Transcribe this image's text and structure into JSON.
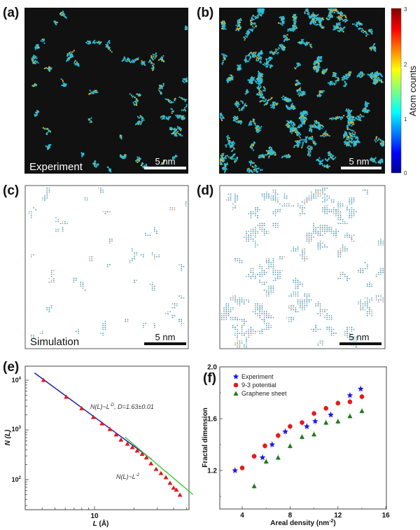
{
  "panels": {
    "a": {
      "label": "(a)",
      "caption": "Experiment",
      "scale_bar": "5 nm"
    },
    "b": {
      "label": "(b)",
      "scale_bar": "5 nm"
    },
    "c": {
      "label": "(c)",
      "caption": "Simulation",
      "scale_bar": "5 nm"
    },
    "d": {
      "label": "(d)",
      "scale_bar": "5 nm"
    },
    "e": {
      "label": "(e)"
    },
    "f": {
      "label": "(f)"
    }
  },
  "colorbar": {
    "title": "Atom counts",
    "ticks": [
      "0",
      "1",
      "2",
      "3"
    ],
    "range": [
      0,
      3
    ]
  },
  "colors": {
    "map_bg": "#111111",
    "atom_cyan": "#2bbcd6",
    "atom_yellow": "#e8b21a",
    "sim_blue": "#4a9fc0",
    "sim_orange": "#e0a070",
    "experiment": "#1a1ae6",
    "potential": "#e61a1a",
    "graphene": "#1a7a1a",
    "fit_blue": "#1a1aa8",
    "fit_green": "#3cc83c",
    "triangle_red": "#e01a1a"
  },
  "chart_data": [
    {
      "type": "scatter",
      "panel": "e",
      "xlabel": "L (Å)",
      "xlabel_parts": {
        "var": "L",
        "unit": " (Å)"
      },
      "ylabel": "N (L)",
      "xscale": "log",
      "yscale": "log",
      "xlim": [
        3.0,
        52
      ],
      "ylim": [
        25,
        19000
      ],
      "xticks": [
        {
          "value": 10,
          "label": "10"
        }
      ],
      "yticks": [
        {
          "value": 100,
          "base": "10",
          "exp": "2"
        },
        {
          "value": 1000,
          "base": "10",
          "exp": "3"
        },
        {
          "value": 10000,
          "base": "10",
          "exp": "4"
        }
      ],
      "series": [
        {
          "name": "N(L)",
          "marker": "triangle",
          "x": [
            4.1,
            6.1,
            8.0,
            9.8,
            11.4,
            13.1,
            14.6,
            15.9,
            17.8,
            19.4,
            21.1,
            23.0,
            24.8,
            26.9,
            29.4,
            32.0,
            34.9,
            37.5,
            39.9,
            41.9,
            44.6
          ],
          "y": [
            10000,
            4600,
            2700,
            1800,
            1340,
            1030,
            800,
            630,
            520,
            445,
            380,
            325,
            275,
            210,
            162,
            134,
            110,
            85,
            68,
            62,
            49
          ]
        }
      ],
      "fits": [
        {
          "name": "fit-D",
          "x": [
            3.5,
            27
          ],
          "y": [
            14000,
            260
          ],
          "color_key": "fit_blue"
        },
        {
          "name": "fit-2",
          "x": [
            17,
            56
          ],
          "y": [
            720,
            50
          ],
          "color_key": "fit_green"
        }
      ],
      "annotations": [
        {
          "id": "powerlaw-D",
          "base": "N(L)~L",
          "sup": "-D",
          "tail": ", D=1.63±0.01"
        },
        {
          "id": "powerlaw-2",
          "base": "N(L)~L",
          "sup": "-2",
          "tail": ""
        }
      ]
    },
    {
      "type": "scatter",
      "panel": "f",
      "xlabel": "Areal density (nm-2)",
      "xlabel_parts": {
        "text": "Areal density (nm",
        "sup": "-2",
        "close": ")"
      },
      "ylabel": "Fractal dimension",
      "xlim": [
        2.1,
        16
      ],
      "ylim": [
        0.9,
        2.0
      ],
      "xticks": [
        4,
        8,
        12,
        16
      ],
      "yticks": [
        {
          "value": 1.2,
          "label": "1.2"
        },
        {
          "value": 1.6,
          "label": "1.6"
        },
        {
          "value": 2.0,
          "label": "2.0"
        }
      ],
      "legend_position": "top-left",
      "series": [
        {
          "name": "Experiment",
          "marker": "star",
          "color_key": "experiment",
          "x": [
            3.4,
            5.7,
            6.5,
            7.6,
            9.4,
            10.1,
            11.4,
            13.0,
            13.9
          ],
          "y": [
            1.2,
            1.3,
            1.4,
            1.5,
            1.54,
            1.58,
            1.63,
            1.78,
            1.83
          ]
        },
        {
          "name": "9-3 potential",
          "marker": "circle",
          "color_key": "potential",
          "x": [
            4.0,
            5.0,
            5.9,
            7.0,
            8.0,
            9.0,
            10.0,
            11.0,
            12.0,
            13.0,
            14.0
          ],
          "y": [
            1.22,
            1.31,
            1.39,
            1.47,
            1.54,
            1.57,
            1.64,
            1.68,
            1.72,
            1.73,
            1.77
          ]
        },
        {
          "name": "Graphene sheet",
          "marker": "triangle",
          "color_key": "graphene",
          "x": [
            5.0,
            6.0,
            7.0,
            8.0,
            9.0,
            10.0,
            11.0,
            12.0,
            13.0,
            14.0
          ],
          "y": [
            1.08,
            1.27,
            1.3,
            1.39,
            1.46,
            1.48,
            1.57,
            1.58,
            1.62,
            1.66
          ]
        }
      ]
    }
  ]
}
